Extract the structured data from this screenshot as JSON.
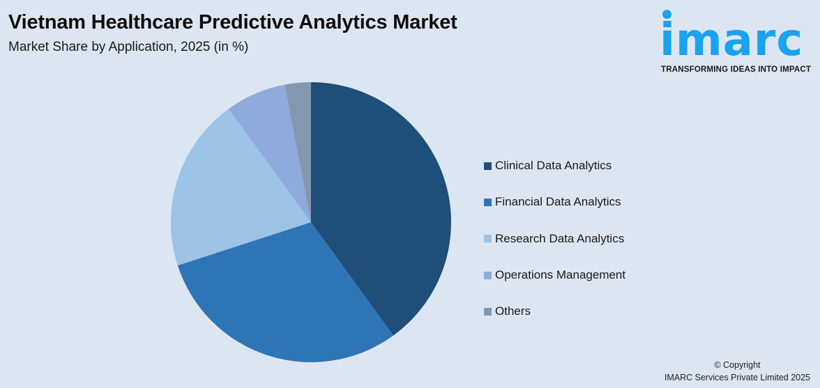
{
  "header": {
    "title": "Vietnam Healthcare Predictive Analytics Market",
    "subtitle": "Market Share by Application, 2025 (in %)"
  },
  "logo": {
    "text": "imarc",
    "tagline": "TRANSFORMING IDEAS INTO IMPACT",
    "color": "#1aa3ee"
  },
  "chart_data": {
    "type": "pie",
    "title": "Vietnam Healthcare Predictive Analytics Market",
    "subtitle": "Market Share by Application, 2025 (in %)",
    "categories": [
      "Clinical Data Analytics",
      "Financial Data Analytics",
      "Research Data Analytics",
      "Operations Management",
      "Others"
    ],
    "values": [
      40,
      30,
      20,
      7,
      3
    ],
    "colors": [
      "#1f4e79",
      "#2e75b6",
      "#9dc3e6",
      "#8faadc",
      "#8497b0"
    ],
    "legend_position": "right",
    "start_angle": "12 o'clock, clockwise"
  },
  "legend": {
    "items": [
      {
        "label": "Clinical Data Analytics",
        "color": "#1f4e79"
      },
      {
        "label": "Financial Data Analytics",
        "color": "#2e75b6"
      },
      {
        "label": "Research Data Analytics",
        "color": "#9dc3e6"
      },
      {
        "label": "Operations Management",
        "color": "#8faadc"
      },
      {
        "label": "Others",
        "color": "#8497b0"
      }
    ]
  },
  "footer": {
    "copyright_line1": "© Copyright",
    "copyright_line2": "IMARC Services Private Limited 2025"
  }
}
